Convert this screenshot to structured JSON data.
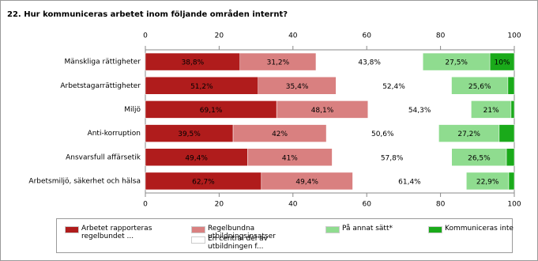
{
  "chart_data": {
    "type": "bar",
    "orientation": "horizontal",
    "stacked": true,
    "normalized": true,
    "title": "22. Hur kommuniceras arbetet inom följande områden internt?",
    "categories": [
      "Mänskliga rättigheter",
      "Arbetstagarrättigheter",
      "Miljö",
      "Anti-korruption",
      "Ansvarsfull affärsetik",
      "Arbetsmiljö, säkerhet och hälsa"
    ],
    "series": [
      {
        "name": "Arbetet rapporteras regelbundet ...",
        "color": "#b01c1c",
        "values": [
          38.8,
          51.2,
          69.1,
          39.5,
          49.4,
          62.7
        ],
        "value_labels": [
          "38,8%",
          "51,2%",
          "69,1%",
          "39,5%",
          "49,4%",
          "62,7%"
        ]
      },
      {
        "name": "Regelbundna utbildningsinsatser",
        "color": "#d98080",
        "values": [
          31.2,
          35.4,
          48.1,
          42,
          41,
          49.4
        ],
        "value_labels": [
          "31,2%",
          "35,4%",
          "48,1%",
          "42%",
          "41%",
          "49,4%"
        ]
      },
      {
        "name": "En central del av utbildningen f...",
        "color": "#ffffff",
        "values": [
          43.8,
          52.4,
          54.3,
          50.6,
          57.8,
          61.4
        ],
        "value_labels": [
          "43,8%",
          "52,4%",
          "54,3%",
          "50,6%",
          "57,8%",
          "61,4%"
        ]
      },
      {
        "name": "På annat sätt*",
        "color": "#8fdc8f",
        "values": [
          27.5,
          25.6,
          21,
          27.2,
          26.5,
          22.9
        ],
        "value_labels": [
          "27,5%",
          "25,6%",
          "21%",
          "27,2%",
          "26,5%",
          "22,9%"
        ]
      },
      {
        "name": "Kommuniceras inte",
        "color": "#1aaa1a",
        "values": [
          10,
          2.9,
          1.7,
          6.8,
          3.8,
          3.0
        ],
        "value_labels": [
          "10%",
          null,
          null,
          null,
          null,
          null
        ]
      }
    ],
    "xlim": [
      0,
      100
    ],
    "xticks": [
      0,
      20,
      40,
      60,
      80,
      100
    ],
    "grid": false
  }
}
